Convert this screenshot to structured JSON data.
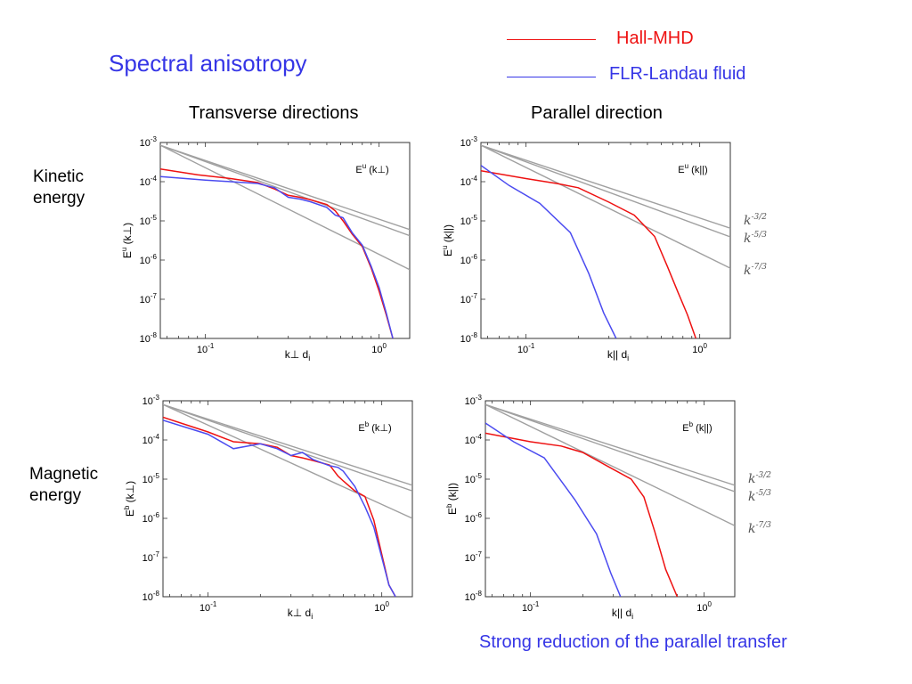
{
  "title": "Spectral anisotropy",
  "legend": [
    {
      "label": "Hall-MHD",
      "color": "#ee1111"
    },
    {
      "label": "FLR-Landau fluid",
      "color": "#3535e6"
    }
  ],
  "columns": [
    "Transverse directions",
    "Parallel direction"
  ],
  "rows": [
    {
      "line1": "Kinetic",
      "line2": "energy"
    },
    {
      "line1": "Magnetic",
      "line2": "energy"
    }
  ],
  "footer": "Strong reduction of the parallel transfer",
  "colors": {
    "hall": "#ee1111",
    "flr": "#4b4bf0",
    "reference": "#a0a0a0"
  },
  "chart_data": [
    {
      "type": "line",
      "id": "ku_perp",
      "inner_label": "E^u (k⊥)",
      "ylabel": "E^u (k⊥)",
      "xlabel": "k⊥ di",
      "xscale": "log",
      "yscale": "log",
      "xlim": [
        0.055,
        1.5
      ],
      "ylim": [
        1e-08,
        0.001
      ],
      "xticks": [
        {
          "value": 0.1,
          "label": "10^-1"
        },
        {
          "value": 1,
          "label": "10^0"
        }
      ],
      "yticks": [
        {
          "value": 0.001,
          "label": "10^-3"
        },
        {
          "value": 0.0001,
          "label": "10^-4"
        },
        {
          "value": 1e-05,
          "label": "10^-5"
        },
        {
          "value": 1e-06,
          "label": "10^-6"
        },
        {
          "value": 1e-07,
          "label": "10^-7"
        },
        {
          "value": 1e-08,
          "label": "10^-8"
        }
      ],
      "reference_lines": [
        {
          "name": "k^-3/2",
          "x": [
            0.055,
            1.5
          ],
          "y": [
            0.00085,
            6e-06
          ]
        },
        {
          "name": "k^-5/3",
          "x": [
            0.055,
            1.5
          ],
          "y": [
            0.00085,
            4.2e-06
          ]
        },
        {
          "name": "k^-7/3",
          "x": [
            0.055,
            1.5
          ],
          "y": [
            0.00085,
            5.7e-07
          ]
        }
      ],
      "slope_labels": [],
      "series": [
        {
          "name": "Hall-MHD",
          "color_key": "hall",
          "x": [
            0.055,
            0.09,
            0.14,
            0.2,
            0.25,
            0.3,
            0.35,
            0.4,
            0.5,
            0.56,
            0.62,
            0.7,
            0.8,
            0.9,
            1.0,
            1.1,
            1.2
          ],
          "y": [
            0.00021,
            0.00015,
            0.00012,
            9.5e-05,
            6.5e-05,
            4.5e-05,
            4e-05,
            3.5e-05,
            2.6e-05,
            1.8e-05,
            1e-05,
            4.6e-06,
            2.2e-06,
            6.3e-07,
            1.6e-07,
            4e-08,
            1e-08
          ]
        },
        {
          "name": "FLR-Landau fluid",
          "color_key": "flr",
          "x": [
            0.055,
            0.1,
            0.14,
            0.2,
            0.25,
            0.3,
            0.35,
            0.4,
            0.5,
            0.56,
            0.62,
            0.7,
            0.8,
            0.9,
            1.0,
            1.1,
            1.2
          ],
          "y": [
            0.000135,
            0.00011,
            0.0001,
            9e-05,
            7e-05,
            4e-05,
            3.6e-05,
            3.1e-05,
            2.2e-05,
            1.4e-05,
            1.2e-05,
            5e-06,
            2.4e-06,
            7e-07,
            2e-07,
            4.5e-08,
            1e-08
          ]
        }
      ]
    },
    {
      "type": "line",
      "id": "ku_par",
      "inner_label": "E^u (k||)",
      "ylabel": "E^u (k||)",
      "xlabel": "k|| di",
      "xscale": "log",
      "yscale": "log",
      "xlim": [
        0.055,
        1.5
      ],
      "ylim": [
        1e-08,
        0.001
      ],
      "xticks": [
        {
          "value": 0.1,
          "label": "10^-1"
        },
        {
          "value": 1,
          "label": "10^0"
        }
      ],
      "yticks": [
        {
          "value": 0.001,
          "label": "10^-3"
        },
        {
          "value": 0.0001,
          "label": "10^-4"
        },
        {
          "value": 1e-05,
          "label": "10^-5"
        },
        {
          "value": 1e-06,
          "label": "10^-6"
        },
        {
          "value": 1e-07,
          "label": "10^-7"
        },
        {
          "value": 1e-08,
          "label": "10^-8"
        }
      ],
      "reference_lines": [
        {
          "name": "k^-3/2",
          "x": [
            0.055,
            1.5
          ],
          "y": [
            0.00085,
            6.5e-06
          ]
        },
        {
          "name": "k^-5/3",
          "x": [
            0.055,
            1.5
          ],
          "y": [
            0.00085,
            3.9e-06
          ]
        },
        {
          "name": "k^-7/3",
          "x": [
            0.055,
            1.5
          ],
          "y": [
            0.00085,
            6.2e-07
          ]
        }
      ],
      "slope_labels": [
        "k^{-3/2}",
        "k^{-5/3}",
        "k^{-7/3}"
      ],
      "series": [
        {
          "name": "Hall-MHD",
          "color_key": "hall",
          "x": [
            0.055,
            0.1,
            0.15,
            0.2,
            0.3,
            0.42,
            0.55,
            0.65,
            0.75,
            0.85,
            0.95
          ],
          "y": [
            0.00019,
            0.00012,
            9e-05,
            7e-05,
            3e-05,
            1.4e-05,
            4e-06,
            7e-07,
            1.5e-07,
            4e-08,
            1e-08
          ]
        },
        {
          "name": "FLR-Landau fluid",
          "color_key": "flr",
          "x": [
            0.055,
            0.08,
            0.12,
            0.18,
            0.23,
            0.28,
            0.33
          ],
          "y": [
            0.00026,
            8e-05,
            2.8e-05,
            5e-06,
            4.5e-07,
            4.5e-08,
            1e-08
          ]
        }
      ]
    },
    {
      "type": "line",
      "id": "kb_perp",
      "inner_label": "E^b (k⊥)",
      "ylabel": "E^b (k⊥)",
      "xlabel": "k⊥ di",
      "xscale": "log",
      "yscale": "log",
      "xlim": [
        0.055,
        1.5
      ],
      "ylim": [
        1e-08,
        0.001
      ],
      "xticks": [
        {
          "value": 0.1,
          "label": "10^-1"
        },
        {
          "value": 1,
          "label": "10^0"
        }
      ],
      "yticks": [
        {
          "value": 0.001,
          "label": "10^-3"
        },
        {
          "value": 0.0001,
          "label": "10^-4"
        },
        {
          "value": 1e-05,
          "label": "10^-5"
        },
        {
          "value": 1e-06,
          "label": "10^-6"
        },
        {
          "value": 1e-07,
          "label": "10^-7"
        },
        {
          "value": 1e-08,
          "label": "10^-8"
        }
      ],
      "reference_lines": [
        {
          "name": "k^-3/2",
          "x": [
            0.055,
            1.5
          ],
          "y": [
            0.0008,
            7e-06
          ]
        },
        {
          "name": "k^-5/3",
          "x": [
            0.055,
            1.5
          ],
          "y": [
            0.0008,
            5e-06
          ]
        },
        {
          "name": "k^-7/3",
          "x": [
            0.055,
            1.5
          ],
          "y": [
            0.0008,
            1e-06
          ]
        }
      ],
      "slope_labels": [],
      "series": [
        {
          "name": "Hall-MHD",
          "color_key": "hall",
          "x": [
            0.055,
            0.1,
            0.14,
            0.2,
            0.25,
            0.3,
            0.35,
            0.4,
            0.5,
            0.56,
            0.6,
            0.7,
            0.8,
            0.9,
            1.0,
            1.1,
            1.2
          ],
          "y": [
            0.00038,
            0.00016,
            9e-05,
            8e-05,
            6.5e-05,
            4e-05,
            3.5e-05,
            3e-05,
            2.3e-05,
            1.2e-05,
            9e-06,
            5e-06,
            3.6e-06,
            9e-07,
            1.2e-07,
            2e-08,
            1e-08
          ]
        },
        {
          "name": "FLR-Landau fluid",
          "color_key": "flr",
          "x": [
            0.055,
            0.1,
            0.14,
            0.2,
            0.25,
            0.3,
            0.35,
            0.4,
            0.5,
            0.56,
            0.6,
            0.7,
            0.8,
            0.9,
            1.0,
            1.1,
            1.2
          ],
          "y": [
            0.00032,
            0.00014,
            6e-05,
            8e-05,
            6e-05,
            4e-05,
            4.8e-05,
            3.2e-05,
            2.2e-05,
            2e-05,
            1.6e-05,
            6.5e-06,
            2e-06,
            6e-07,
            1e-07,
            2e-08,
            1e-08
          ]
        }
      ]
    },
    {
      "type": "line",
      "id": "kb_par",
      "inner_label": "E^b (k||)",
      "ylabel": "E^b (k||)",
      "xlabel": "k|| di",
      "xscale": "log",
      "yscale": "log",
      "xlim": [
        0.055,
        1.5
      ],
      "ylim": [
        1e-08,
        0.001
      ],
      "xticks": [
        {
          "value": 0.1,
          "label": "10^-1"
        },
        {
          "value": 1,
          "label": "10^0"
        }
      ],
      "yticks": [
        {
          "value": 0.001,
          "label": "10^-3"
        },
        {
          "value": 0.0001,
          "label": "10^-4"
        },
        {
          "value": 1e-05,
          "label": "10^-5"
        },
        {
          "value": 1e-06,
          "label": "10^-6"
        },
        {
          "value": 1e-07,
          "label": "10^-7"
        },
        {
          "value": 1e-08,
          "label": "10^-8"
        }
      ],
      "reference_lines": [
        {
          "name": "k^-3/2",
          "x": [
            0.055,
            1.5
          ],
          "y": [
            0.0008,
            7e-06
          ]
        },
        {
          "name": "k^-5/3",
          "x": [
            0.055,
            1.5
          ],
          "y": [
            0.0008,
            4.8e-06
          ]
        },
        {
          "name": "k^-7/3",
          "x": [
            0.055,
            1.5
          ],
          "y": [
            0.0008,
            6.5e-07
          ]
        }
      ],
      "slope_labels": [
        "k^{-3/2}",
        "k^{-5/3}",
        "k^{-7/3}"
      ],
      "series": [
        {
          "name": "Hall-MHD",
          "color_key": "hall",
          "x": [
            0.055,
            0.1,
            0.15,
            0.2,
            0.28,
            0.38,
            0.45,
            0.52,
            0.6,
            0.7
          ],
          "y": [
            0.00015,
            9e-05,
            7e-05,
            4.8e-05,
            2.1e-05,
            1e-05,
            3.5e-06,
            4.5e-07,
            5e-08,
            1e-08
          ]
        },
        {
          "name": "FLR-Landau fluid",
          "color_key": "flr",
          "x": [
            0.055,
            0.08,
            0.12,
            0.18,
            0.24,
            0.29,
            0.33
          ],
          "y": [
            0.00027,
            9e-05,
            3.5e-05,
            3e-06,
            4e-07,
            4e-08,
            1e-08
          ]
        }
      ]
    }
  ]
}
